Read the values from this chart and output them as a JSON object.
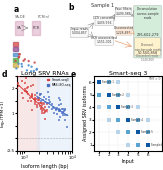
{
  "fig_bg": "#ffffff",
  "panel_d": {
    "title": "Long SRV RNAs",
    "xlabel": "Isoform length (bp)",
    "ylabel": "log₂(TPM+1)",
    "smartseq_color": "#d94040",
    "masiso_color": "#4a6fc4",
    "smartseq_fill": "#f2b8b8",
    "masiso_fill": "#b8c8f0",
    "shading_color": "#f5dede",
    "legend_smartseq": "Smart-seq3",
    "legend_masiso": "MAS-ISO-seq",
    "ylim": [
      -0.5,
      2.5
    ],
    "shading_xlim": [
      700,
      2000
    ]
  },
  "panel_e": {
    "title": "Smart-seq 3",
    "subtitle": "TPM > 0",
    "xlabel": "Input",
    "ylabel": "Assigned SRV isoforms",
    "n": 6,
    "sample_labels": [
      "Sample 1",
      "Sample 2",
      "Sample 3",
      "Sample 4",
      "Sample 5",
      "Sample 6"
    ],
    "diagonal_color": "#2255aa",
    "off_diag_color": "#6688cc",
    "grid_color": "#dddddd"
  },
  "top_left_bg": "#f0f0f5",
  "top_right_bg": "#e8f5e8",
  "title_fontsize": 4.5,
  "label_fontsize": 3.5,
  "tick_fontsize": 3.0,
  "annot_fontsize": 3.0
}
